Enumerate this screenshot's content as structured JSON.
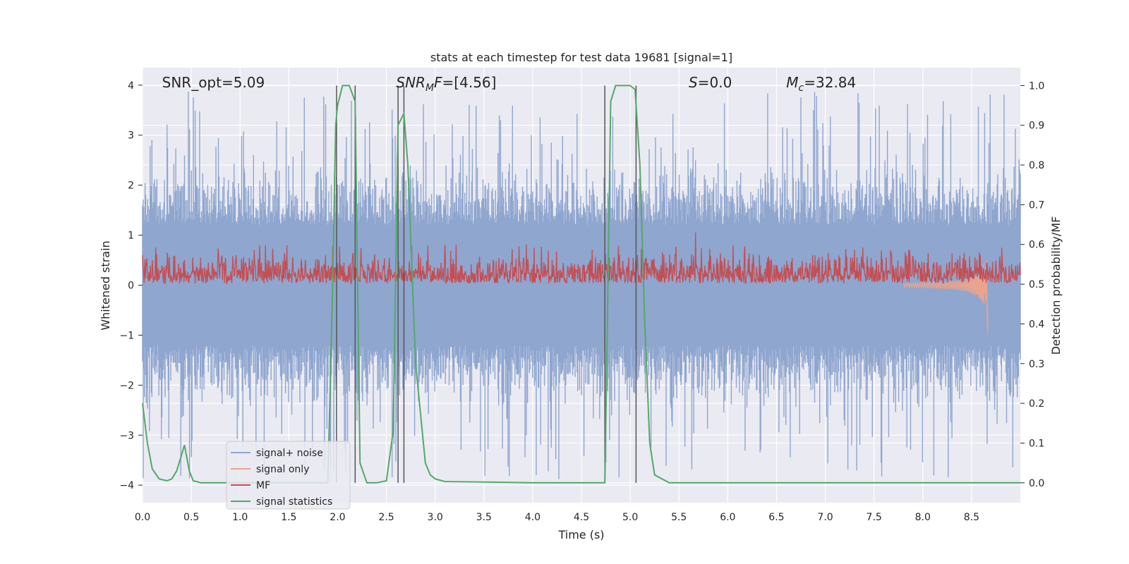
{
  "chart_data": {
    "type": "line",
    "title": "stats at each timestep for test data 19681 [signal=1]",
    "xlabel": "Time (s)",
    "ylabel": "Whitened strain",
    "ylabel_right": "Detection probability/MF",
    "xlim": [
      0.0,
      9.0
    ],
    "ylim": [
      -4.35,
      4.35
    ],
    "ylim_right": [
      -0.05,
      1.045
    ],
    "x_ticks": [
      0.0,
      0.5,
      1.0,
      1.5,
      2.0,
      2.5,
      3.0,
      3.5,
      4.0,
      4.5,
      5.0,
      5.5,
      6.0,
      6.5,
      7.0,
      7.5,
      8.0,
      8.5
    ],
    "x_tick_labels": [
      "0.0",
      "0.5",
      "1.0",
      "1.5",
      "2.0",
      "2.5",
      "3.0",
      "3.5",
      "4.0",
      "4.5",
      "5.0",
      "5.5",
      "6.0",
      "6.5",
      "7.0",
      "7.5",
      "8.0",
      "8.5"
    ],
    "y_ticks": [
      4,
      3,
      2,
      1,
      0,
      -1,
      -2,
      -3,
      -4
    ],
    "y_tick_labels": [
      "4",
      "3",
      "2",
      "1",
      "0",
      "−1",
      "−2",
      "−3",
      "−4"
    ],
    "y_right_ticks": [
      1.0,
      0.9,
      0.8,
      0.7,
      0.6,
      0.5,
      0.4,
      0.3,
      0.2,
      0.1,
      0.0
    ],
    "y_right_tick_labels": [
      "1.0",
      "0.9",
      "0.8",
      "0.7",
      "0.6",
      "0.5",
      "0.4",
      "0.3",
      "0.2",
      "0.1",
      "0.0"
    ],
    "grid": true,
    "annotations": [
      {
        "id": "snr-opt",
        "text": "SNR_opt=5.09",
        "x": 0.2
      },
      {
        "id": "snr-mf",
        "text": "SNR_MF=[4.56]",
        "x": 2.6
      },
      {
        "id": "s",
        "text": "S=0.0",
        "x": 5.6
      },
      {
        "id": "mc",
        "text": "M_c=32.84",
        "x": 6.6
      }
    ],
    "vertical_lines": [
      1.99,
      2.18,
      2.62,
      2.68,
      4.74,
      5.06
    ],
    "legend": {
      "placement": "lower-left",
      "entries": [
        {
          "name": "signal+ noise",
          "color": "#8fa6cf"
        },
        {
          "name": "signal only",
          "color": "#e8a48e"
        },
        {
          "name": "MF",
          "color": "#c44e52"
        },
        {
          "name": "signal statistics",
          "color": "#55a868"
        }
      ]
    },
    "series": [
      {
        "name": "signal+ noise",
        "axis": "left",
        "color": "#8fa6cf",
        "style": "dense noise, approx. range -2.6 to 2.6 with spikes to ±4",
        "x_range": [
          0.0,
          9.0
        ]
      },
      {
        "name": "signal only",
        "axis": "left",
        "color": "#e8a48e",
        "style": "chirp rising near merger",
        "x_range": [
          7.8,
          8.67
        ],
        "peak_abs": 1.25
      },
      {
        "name": "MF",
        "axis": "right",
        "color": "#c44e52",
        "style": "noisy, approx. range 0.5 to 0.6",
        "x_range": [
          0.0,
          9.0
        ]
      },
      {
        "name": "signal statistics",
        "axis": "right",
        "color": "#55a868",
        "x": [
          0.0,
          0.05,
          0.1,
          0.17,
          0.25,
          0.3,
          0.35,
          0.4,
          0.43,
          0.48,
          0.52,
          0.6,
          1.0,
          1.5,
          1.9,
          1.95,
          1.98,
          2.0,
          2.05,
          2.12,
          2.18,
          2.23,
          2.3,
          2.4,
          2.5,
          2.57,
          2.62,
          2.68,
          2.72,
          2.8,
          2.9,
          2.95,
          3.0,
          3.1,
          3.5,
          4.0,
          4.5,
          4.74,
          4.76,
          4.8,
          4.85,
          5.0,
          5.05,
          5.1,
          5.15,
          5.2,
          5.25,
          5.4,
          6.0,
          7.0,
          8.0,
          9.0
        ],
        "y": [
          0.2,
          0.1,
          0.035,
          0.01,
          0.005,
          0.01,
          0.03,
          0.07,
          0.095,
          0.03,
          0.005,
          0.0,
          0.0,
          0.0,
          0.0,
          0.5,
          0.9,
          0.95,
          1.0,
          1.0,
          0.96,
          0.05,
          0.0,
          0.0,
          0.005,
          0.13,
          0.9,
          0.93,
          0.8,
          0.3,
          0.05,
          0.02,
          0.01,
          0.003,
          0.002,
          0.0,
          0.0,
          0.0,
          0.3,
          0.96,
          1.0,
          1.0,
          0.99,
          0.8,
          0.4,
          0.1,
          0.02,
          0.0,
          0.0,
          0.0,
          0.0,
          0.0
        ]
      }
    ]
  }
}
